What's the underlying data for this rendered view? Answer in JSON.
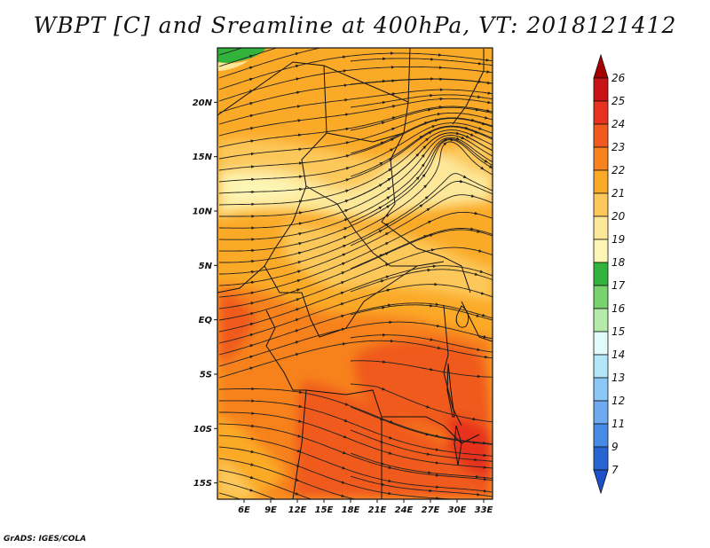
{
  "title": "WBPT [C] and Sreamline at 400hPa, VT: 2018121412",
  "credit": "GrADS: IGES/COLA",
  "map": {
    "lon_range": [
      3,
      34
    ],
    "lat_range": [
      -16.5,
      25
    ],
    "lat_ticks": [
      {
        "value": 20,
        "label": "20N"
      },
      {
        "value": 15,
        "label": "15N"
      },
      {
        "value": 10,
        "label": "10N"
      },
      {
        "value": 5,
        "label": "5N"
      },
      {
        "value": 0,
        "label": "EQ"
      },
      {
        "value": -5,
        "label": "5S"
      },
      {
        "value": -10,
        "label": "10S"
      },
      {
        "value": -15,
        "label": "15S"
      }
    ],
    "lon_ticks": [
      {
        "value": 6,
        "label": "6E"
      },
      {
        "value": 9,
        "label": "9E"
      },
      {
        "value": 12,
        "label": "12E"
      },
      {
        "value": 15,
        "label": "15E"
      },
      {
        "value": 18,
        "label": "18E"
      },
      {
        "value": 21,
        "label": "21E"
      },
      {
        "value": 24,
        "label": "24E"
      },
      {
        "value": 27,
        "label": "27E"
      },
      {
        "value": 30,
        "label": "30E"
      },
      {
        "value": 33,
        "label": "33E"
      }
    ]
  },
  "colorbar": {
    "levels": [
      {
        "label": "26",
        "color": "#a50000"
      },
      {
        "label": "25",
        "color": "#c81414"
      },
      {
        "label": "24",
        "color": "#e6321e"
      },
      {
        "label": "23",
        "color": "#f05a1e"
      },
      {
        "label": "22",
        "color": "#f7821e"
      },
      {
        "label": "21",
        "color": "#fbaa28"
      },
      {
        "label": "20",
        "color": "#fcc85a"
      },
      {
        "label": "19",
        "color": "#fde89a"
      },
      {
        "label": "18",
        "color": "#fdf5b4"
      },
      {
        "label": "17",
        "color": "#32b43c"
      },
      {
        "label": "16",
        "color": "#78d26e"
      },
      {
        "label": "15",
        "color": "#b4ebaa"
      },
      {
        "label": "14",
        "color": "#e1fafa"
      },
      {
        "label": "13",
        "color": "#b4e6fa"
      },
      {
        "label": "12",
        "color": "#8cc8f5"
      },
      {
        "label": "11",
        "color": "#6eaaf0"
      },
      {
        "label": "9",
        "color": "#468ce6"
      },
      {
        "label": "7",
        "color": "#2864d2"
      }
    ],
    "bottom_color": "#1e50c8"
  }
}
